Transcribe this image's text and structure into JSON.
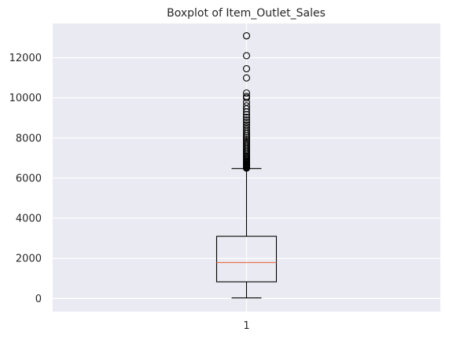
{
  "chart_data": {
    "type": "boxplot",
    "title": "Boxplot of Item_Outlet_Sales",
    "xlabel": "",
    "ylabel": "",
    "categories": [
      "1"
    ],
    "yticks": [
      0,
      2000,
      4000,
      6000,
      8000,
      10000,
      12000
    ],
    "ylim": [
      -650,
      13700
    ],
    "grid": true,
    "box": {
      "whisker_low": 33,
      "q1": 834,
      "median": 1794,
      "q3": 3101,
      "whisker_high": 6478
    },
    "outliers": [
      6500,
      6520,
      6540,
      6560,
      6580,
      6600,
      6630,
      6660,
      6700,
      6740,
      6780,
      6820,
      6870,
      6920,
      6980,
      7040,
      7100,
      7160,
      7230,
      7300,
      7380,
      7460,
      7540,
      7620,
      7700,
      7780,
      7860,
      7950,
      8040,
      8130,
      8230,
      8330,
      8440,
      8550,
      8660,
      8780,
      8900,
      9030,
      9160,
      9300,
      9450,
      9600,
      9780,
      10000,
      10070,
      10240,
      10990,
      11450,
      12100,
      13090
    ],
    "colors": {
      "background": "#eaeaf2",
      "grid": "#ffffff",
      "box": "#000000",
      "median": "#e8734f"
    }
  }
}
